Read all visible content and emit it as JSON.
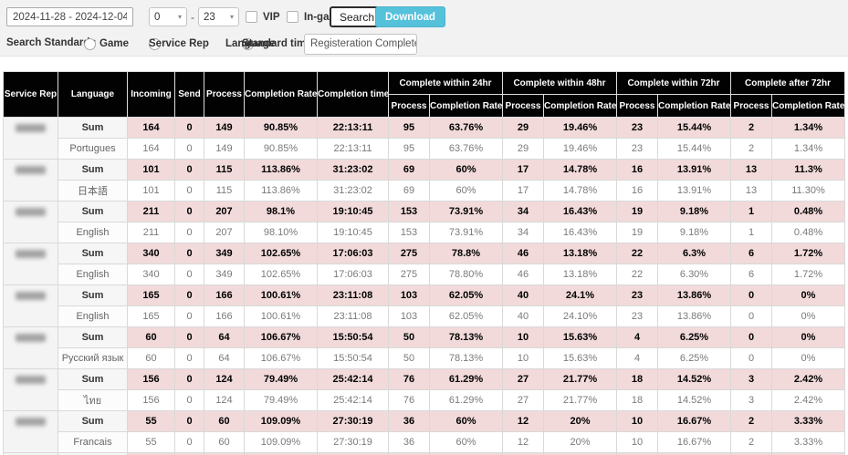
{
  "toolbar": {
    "date_range": "2024-11-28 - 2024-12-04",
    "hour_from": "0",
    "hour_to": "23",
    "range_separator": "-",
    "vip_label": "VIP",
    "ingame_label": "In-game(Chatbot)",
    "search_label": "Search",
    "download_label": "Download",
    "caret": "▾"
  },
  "filters": {
    "search_standard_label": "Search Standard :",
    "option_game": "Game",
    "option_service_rep": "Service Rep",
    "option_language": "Language",
    "selected_option": "Language",
    "standard_time_label": "Standard time :",
    "standard_time_value": "Registeration Complete ~ Cer"
  },
  "colors": {
    "download_button": "#55c1db",
    "header_bg": "#020202",
    "sum_row_bg": "#f2dada",
    "toolbar_bg": "#f2f2f2"
  },
  "table": {
    "sum_label": "Sum",
    "columns": [
      "Service Rep",
      "Language",
      "Incoming",
      "Send",
      "Process",
      "Completion Rate",
      "Completion time"
    ],
    "group_headers": [
      {
        "label": "Complete within 24hr",
        "sub": [
          "Process",
          "Completion Rate"
        ]
      },
      {
        "label": "Complete within 48hr",
        "sub": [
          "Process",
          "Completion Rate"
        ]
      },
      {
        "label": "Complete within 72hr",
        "sub": [
          "Process",
          "Completion Rate"
        ]
      },
      {
        "label": "Complete after 72hr",
        "sub": [
          "Process",
          "Completion Rate"
        ]
      }
    ],
    "groups": [
      {
        "language": "Portugues",
        "sum": [
          "164",
          "0",
          "149",
          "90.85%",
          "22:13:11",
          "95",
          "63.76%",
          "29",
          "19.46%",
          "23",
          "15.44%",
          "2",
          "1.34%"
        ],
        "lang": [
          "164",
          "0",
          "149",
          "90.85%",
          "22:13:11",
          "95",
          "63.76%",
          "29",
          "19.46%",
          "23",
          "15.44%",
          "2",
          "1.34%"
        ]
      },
      {
        "language": "日本語",
        "sum": [
          "101",
          "0",
          "115",
          "113.86%",
          "31:23:02",
          "69",
          "60%",
          "17",
          "14.78%",
          "16",
          "13.91%",
          "13",
          "11.3%"
        ],
        "lang": [
          "101",
          "0",
          "115",
          "113.86%",
          "31:23:02",
          "69",
          "60%",
          "17",
          "14.78%",
          "16",
          "13.91%",
          "13",
          "11.30%"
        ]
      },
      {
        "language": "English",
        "sum": [
          "211",
          "0",
          "207",
          "98.1%",
          "19:10:45",
          "153",
          "73.91%",
          "34",
          "16.43%",
          "19",
          "9.18%",
          "1",
          "0.48%"
        ],
        "lang": [
          "211",
          "0",
          "207",
          "98.10%",
          "19:10:45",
          "153",
          "73.91%",
          "34",
          "16.43%",
          "19",
          "9.18%",
          "1",
          "0.48%"
        ]
      },
      {
        "language": "English",
        "sum": [
          "340",
          "0",
          "349",
          "102.65%",
          "17:06:03",
          "275",
          "78.8%",
          "46",
          "13.18%",
          "22",
          "6.3%",
          "6",
          "1.72%"
        ],
        "lang": [
          "340",
          "0",
          "349",
          "102.65%",
          "17:06:03",
          "275",
          "78.80%",
          "46",
          "13.18%",
          "22",
          "6.30%",
          "6",
          "1.72%"
        ]
      },
      {
        "language": "English",
        "sum": [
          "165",
          "0",
          "166",
          "100.61%",
          "23:11:08",
          "103",
          "62.05%",
          "40",
          "24.1%",
          "23",
          "13.86%",
          "0",
          "0%"
        ],
        "lang": [
          "165",
          "0",
          "166",
          "100.61%",
          "23:11:08",
          "103",
          "62.05%",
          "40",
          "24.10%",
          "23",
          "13.86%",
          "0",
          "0%"
        ]
      },
      {
        "language": "Русский язык",
        "sum": [
          "60",
          "0",
          "64",
          "106.67%",
          "15:50:54",
          "50",
          "78.13%",
          "10",
          "15.63%",
          "4",
          "6.25%",
          "0",
          "0%"
        ],
        "lang": [
          "60",
          "0",
          "64",
          "106.67%",
          "15:50:54",
          "50",
          "78.13%",
          "10",
          "15.63%",
          "4",
          "6.25%",
          "0",
          "0%"
        ]
      },
      {
        "language": "ไทย",
        "sum": [
          "156",
          "0",
          "124",
          "79.49%",
          "25:42:14",
          "76",
          "61.29%",
          "27",
          "21.77%",
          "18",
          "14.52%",
          "3",
          "2.42%"
        ],
        "lang": [
          "156",
          "0",
          "124",
          "79.49%",
          "25:42:14",
          "76",
          "61.29%",
          "27",
          "21.77%",
          "18",
          "14.52%",
          "3",
          "2.42%"
        ]
      },
      {
        "language": "Francais",
        "sum": [
          "55",
          "0",
          "60",
          "109.09%",
          "27:30:19",
          "36",
          "60%",
          "12",
          "20%",
          "10",
          "16.67%",
          "2",
          "3.33%"
        ],
        "lang": [
          "55",
          "0",
          "60",
          "109.09%",
          "27:30:19",
          "36",
          "60%",
          "12",
          "20%",
          "10",
          "16.67%",
          "2",
          "3.33%"
        ]
      },
      {
        "language": null,
        "sum": [
          "",
          "",
          "",
          "",
          "",
          "",
          "",
          "",
          "",
          "",
          "",
          "",
          ""
        ],
        "lang": null
      }
    ]
  }
}
